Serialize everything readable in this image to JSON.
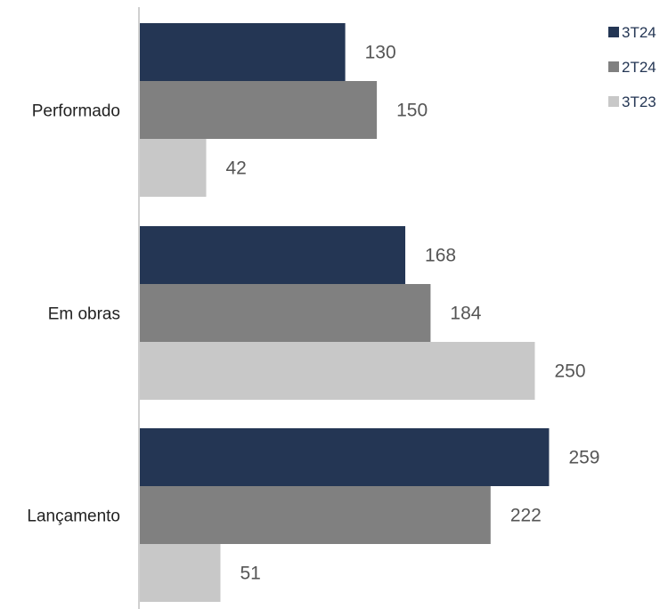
{
  "chart_data": {
    "type": "bar",
    "orientation": "horizontal",
    "categories": [
      "Performado",
      "Em obras",
      "Lançamento"
    ],
    "series": [
      {
        "name": "3T24",
        "values": [
          130,
          168,
          259
        ],
        "color": "#243654"
      },
      {
        "name": "2T24",
        "values": [
          150,
          184,
          222
        ],
        "color": "#808080"
      },
      {
        "name": "3T23",
        "values": [
          42,
          250,
          51
        ],
        "color": "#c8c8c8"
      }
    ],
    "xlim": [
      0,
      300
    ],
    "grid": false,
    "legend_position": "top-right",
    "title": "",
    "xlabel": "",
    "ylabel": ""
  }
}
